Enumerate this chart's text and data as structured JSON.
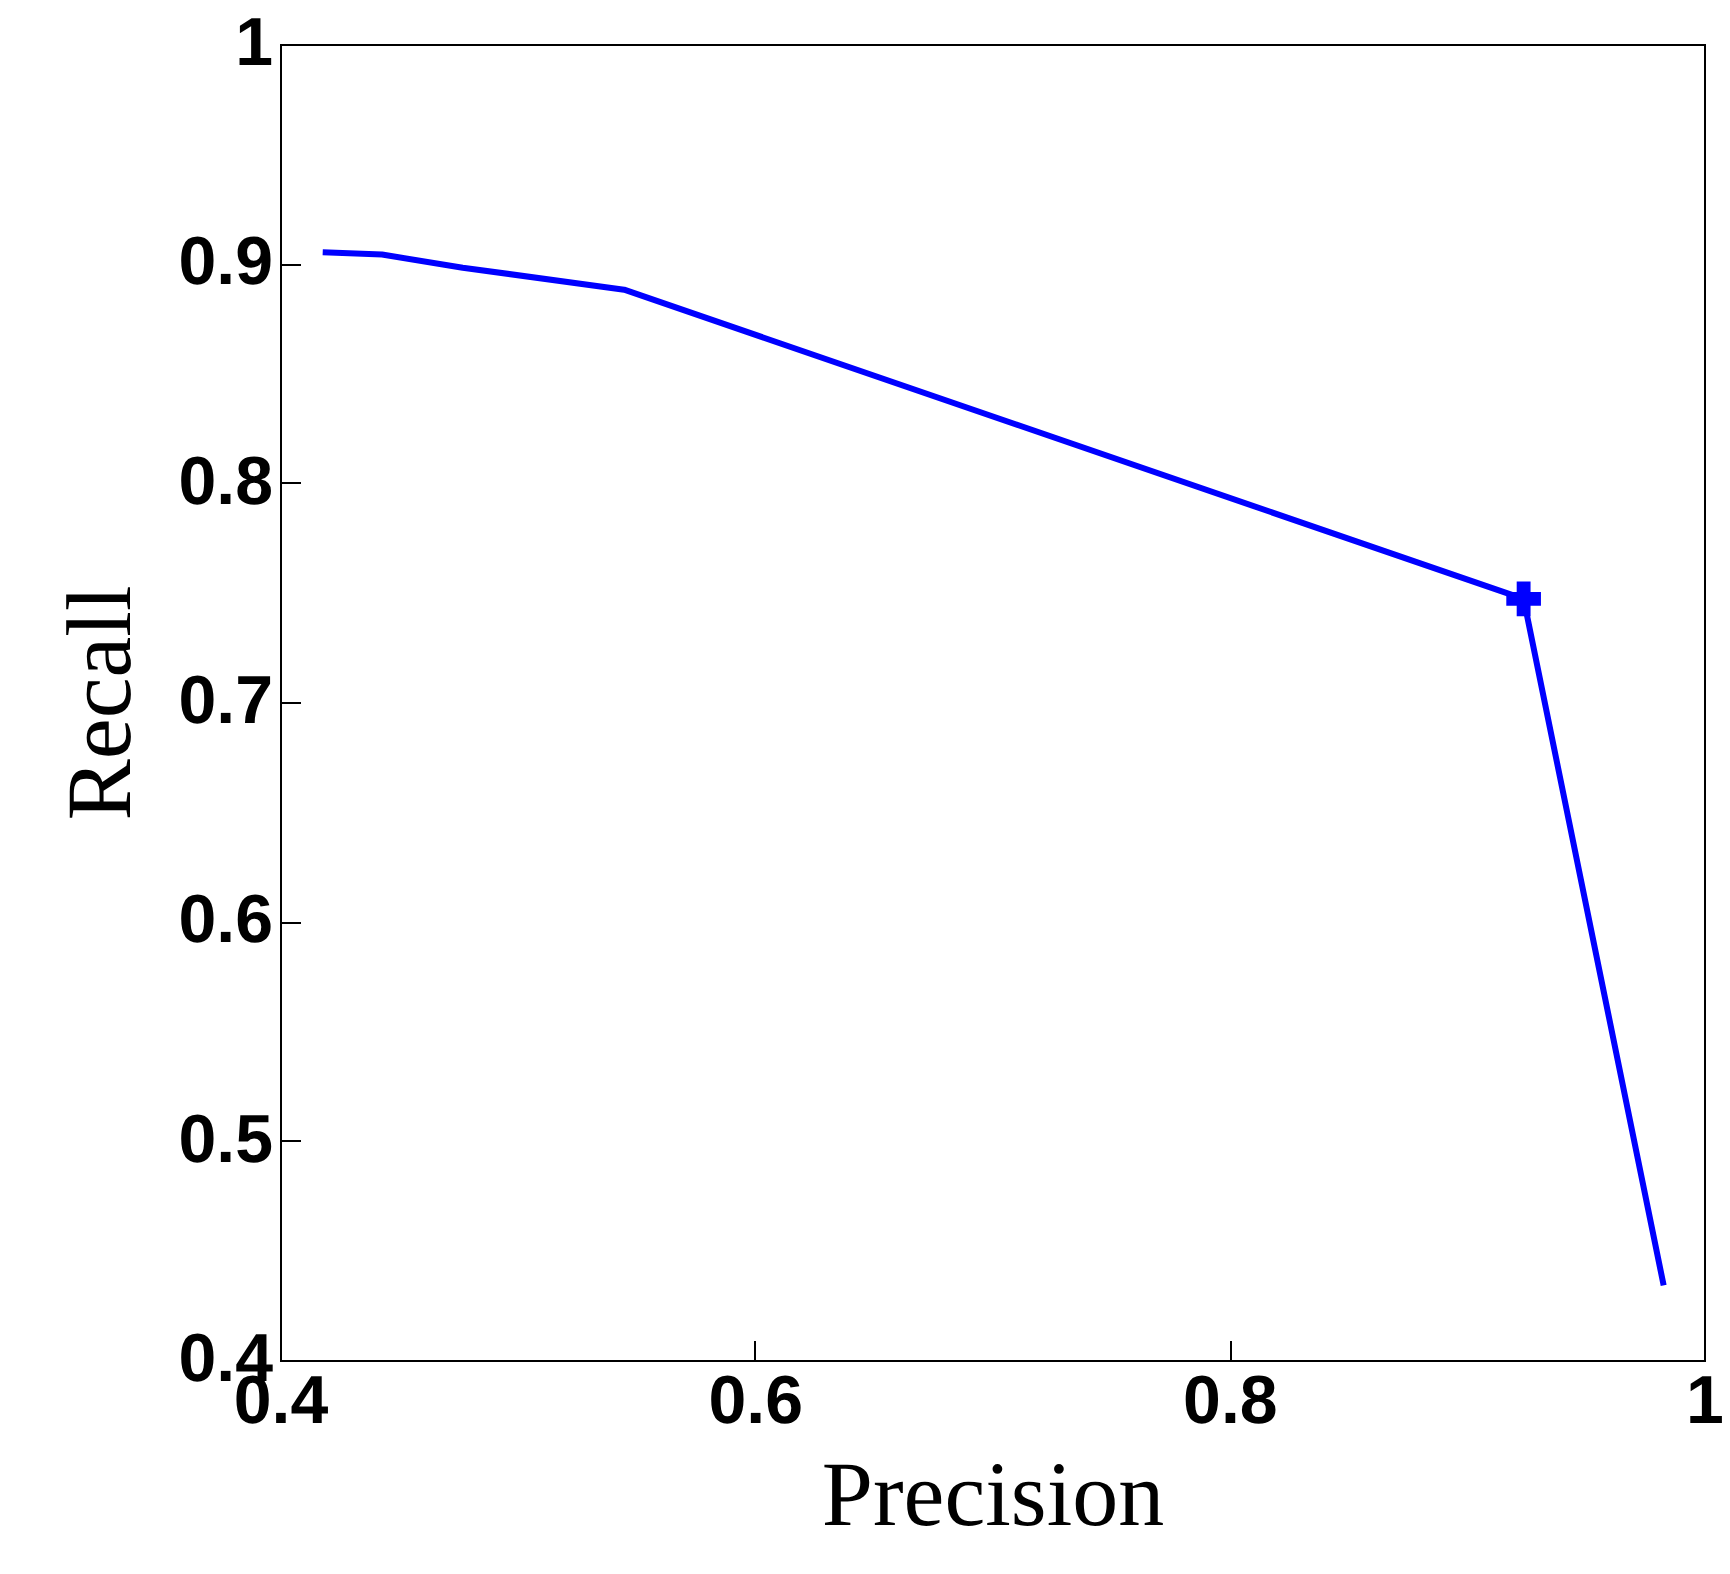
{
  "chart_data": {
    "type": "line",
    "xlabel": "Precision",
    "ylabel": "Recall",
    "xlim": [
      0.4,
      1
    ],
    "ylim": [
      0.4,
      1
    ],
    "xticks": [
      0.4,
      0.6,
      0.8,
      1
    ],
    "yticks": [
      0.4,
      0.5,
      0.6,
      0.7,
      0.8,
      0.9,
      1
    ],
    "grid": false,
    "series": [
      {
        "color": "#0000ff",
        "x": [
          0.418,
          0.443,
          0.477,
          0.545,
          0.924,
          0.983
        ],
        "values": [
          0.905,
          0.904,
          0.898,
          0.888,
          0.747,
          0.434
        ]
      },
      {
        "type": "scatter",
        "marker": "cross",
        "color": "#0000ff",
        "x": [
          0.924
        ],
        "values": [
          0.747
        ]
      }
    ]
  }
}
